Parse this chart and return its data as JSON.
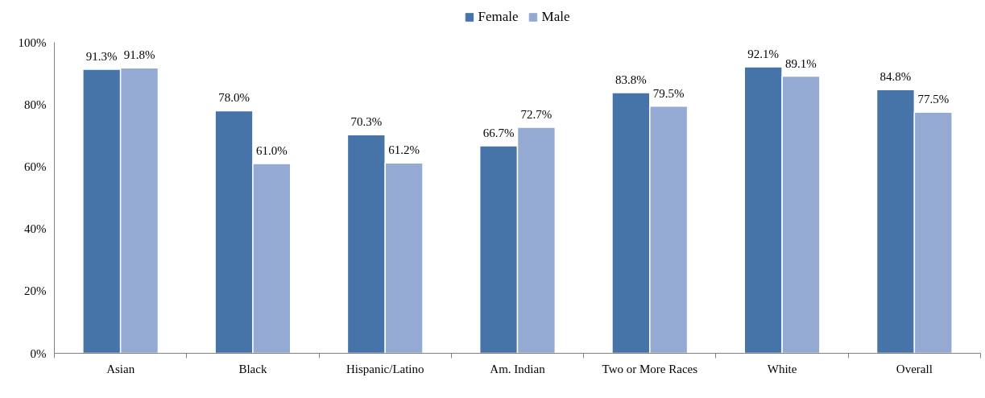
{
  "chart_data": {
    "type": "bar",
    "categories": [
      "Asian",
      "Black",
      "Hispanic/Latino",
      "Am. Indian",
      "Two or More Races",
      "White",
      "Overall"
    ],
    "series": [
      {
        "name": "Female",
        "color": "#4673a8",
        "values": [
          91.3,
          78.0,
          70.3,
          66.7,
          83.8,
          92.1,
          84.8
        ],
        "value_labels": [
          "91.3%",
          "78.0%",
          "70.3%",
          "66.7%",
          "83.8%",
          "92.1%",
          "84.8%"
        ]
      },
      {
        "name": "Male",
        "color": "#95aad2",
        "values": [
          91.8,
          61.0,
          61.2,
          72.7,
          79.5,
          89.1,
          77.5
        ],
        "value_labels": [
          "91.8%",
          "61.0%",
          "61.2%",
          "72.7%",
          "79.5%",
          "89.1%",
          "77.5%"
        ]
      }
    ],
    "ylim": [
      0,
      100
    ],
    "yticks": [
      {
        "value": 0,
        "label": "0%"
      },
      {
        "value": 20,
        "label": "20%"
      },
      {
        "value": 40,
        "label": "40%"
      },
      {
        "value": 60,
        "label": "60%"
      },
      {
        "value": 80,
        "label": "80%"
      },
      {
        "value": 100,
        "label": "100%"
      }
    ],
    "grid": false,
    "legend": "top"
  }
}
